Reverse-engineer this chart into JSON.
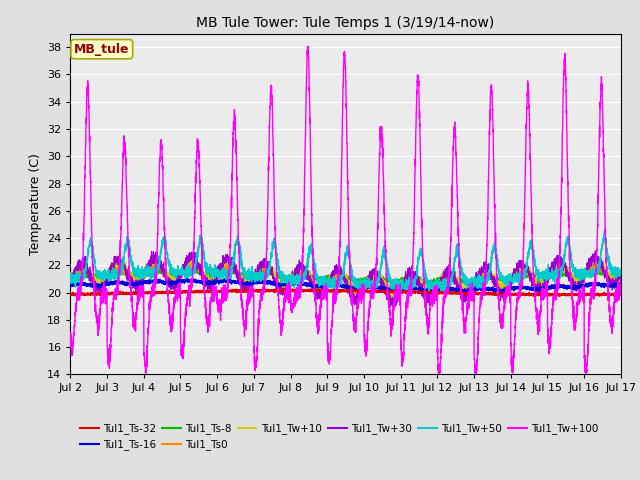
{
  "title": "MB Tule Tower: Tule Temps 1 (3/19/14-now)",
  "ylabel": "Temperature (C)",
  "ylim": [
    14,
    39
  ],
  "yticks": [
    14,
    16,
    18,
    20,
    22,
    24,
    26,
    28,
    30,
    32,
    34,
    36,
    38
  ],
  "xlim": [
    0,
    15
  ],
  "xtick_labels": [
    "Jul 2",
    "Jul 3",
    "Jul 4",
    "Jul 5",
    "Jul 6",
    "Jul 7",
    "Jul 8",
    "Jul 9",
    "Jul 10",
    "Jul 11",
    "Jul 12",
    "Jul 13",
    "Jul 14",
    "Jul 15",
    "Jul 16",
    "Jul 17"
  ],
  "xtick_positions": [
    0,
    1,
    2,
    3,
    4,
    5,
    6,
    7,
    8,
    9,
    10,
    11,
    12,
    13,
    14,
    15
  ],
  "annotation": {
    "text": "MB_tule"
  },
  "legend": [
    {
      "label": "Tul1_Ts-32",
      "color": "#dd0000"
    },
    {
      "label": "Tul1_Ts-16",
      "color": "#0000dd"
    },
    {
      "label": "Tul1_Ts-8",
      "color": "#00bb00"
    },
    {
      "label": "Tul1_Ts0",
      "color": "#ff8800"
    },
    {
      "label": "Tul1_Tw+10",
      "color": "#cccc00"
    },
    {
      "label": "Tul1_Tw+30",
      "color": "#9900cc"
    },
    {
      "label": "Tul1_Tw+50",
      "color": "#00cccc"
    },
    {
      "label": "Tul1_Tw+100",
      "color": "#ff00ff"
    }
  ],
  "bg_color": "#e0e0e0",
  "plot_bg": "#ebebeb"
}
